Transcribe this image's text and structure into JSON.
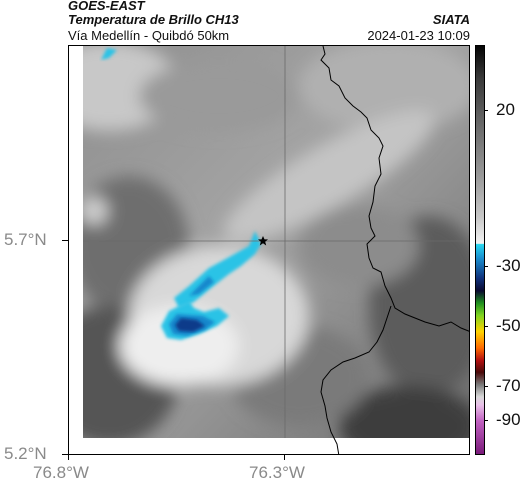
{
  "header": {
    "satellite": "GOES-EAST",
    "product": "Temperatura de Brillo CH13",
    "route": "Vía Medellín - Quibdó 50km",
    "org": "SIATA",
    "datetime": "2024-01-23 10:09"
  },
  "map": {
    "y_ticks": [
      "5.7°N",
      "5.2°N"
    ],
    "x_ticks": [
      "76.8°W",
      "76.3°W"
    ],
    "marker": "location-star"
  },
  "colorbar": {
    "labels": [
      "20",
      "-30",
      "-50",
      "-70",
      "-90"
    ],
    "colors": {
      "warm_top": "#050505",
      "cold_start": "#29d8f0",
      "deep_blue": "#10307a",
      "green": "#7ed321",
      "yellow": "#ffd300",
      "red": "#b31010",
      "magenta": "#7a1a7a"
    }
  }
}
